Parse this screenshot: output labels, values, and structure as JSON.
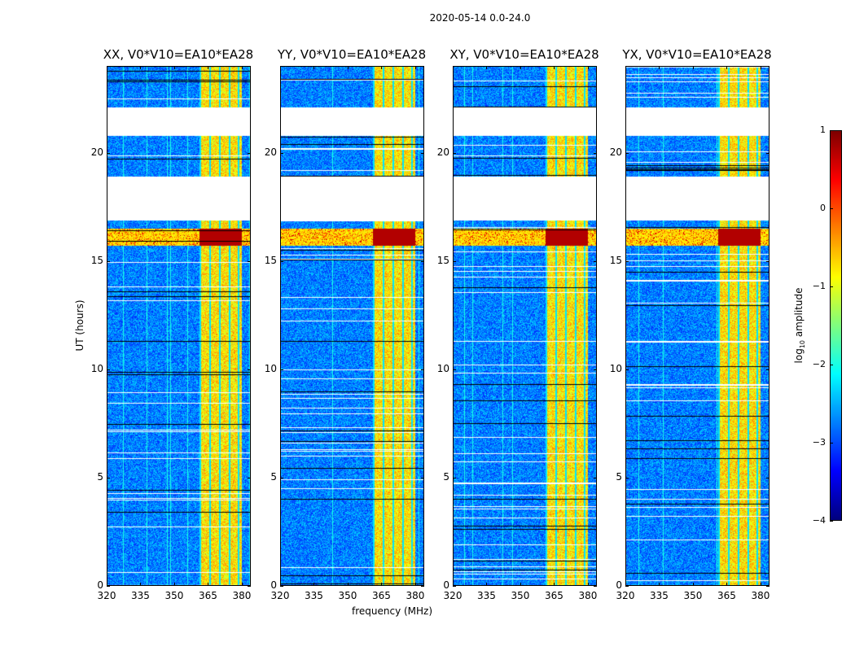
{
  "chart_data": {
    "type": "heatmap",
    "title": "2020-05-14 0.0-24.0",
    "xlabel": "frequency (MHz)",
    "ylabel": "UT (hours)",
    "xlim": [
      320,
      384
    ],
    "ylim": [
      0,
      24
    ],
    "xticks": [
      320,
      335,
      350,
      365,
      380
    ],
    "yticks": [
      0,
      5,
      10,
      15,
      20
    ],
    "panels": [
      {
        "title": "XX, V0*V10=EA10*EA28",
        "seed": 1
      },
      {
        "title": "YY, V0*V10=EA10*EA28",
        "seed": 2
      },
      {
        "title": "XY, V0*V10=EA10*EA28",
        "seed": 3
      },
      {
        "title": "YX, V0*V10=EA10*EA28",
        "seed": 4
      }
    ],
    "no_data_hours": [
      [
        16.9,
        18.9
      ],
      [
        20.8,
        22.1
      ]
    ],
    "bright_band_mhz": [
      361,
      380
    ],
    "strong_rfi_hours": [
      15.7,
      16.5
    ],
    "colorbar": {
      "label_prefix": "log",
      "label_sub": "10",
      "label_suffix": " amplitude",
      "colormap": "jet",
      "range": [
        -4,
        1
      ],
      "ticks": [
        1,
        0,
        -1,
        -2,
        -3,
        -4
      ],
      "tick_labels": [
        "1",
        "0",
        "−1",
        "−2",
        "−3",
        "−4"
      ]
    }
  }
}
